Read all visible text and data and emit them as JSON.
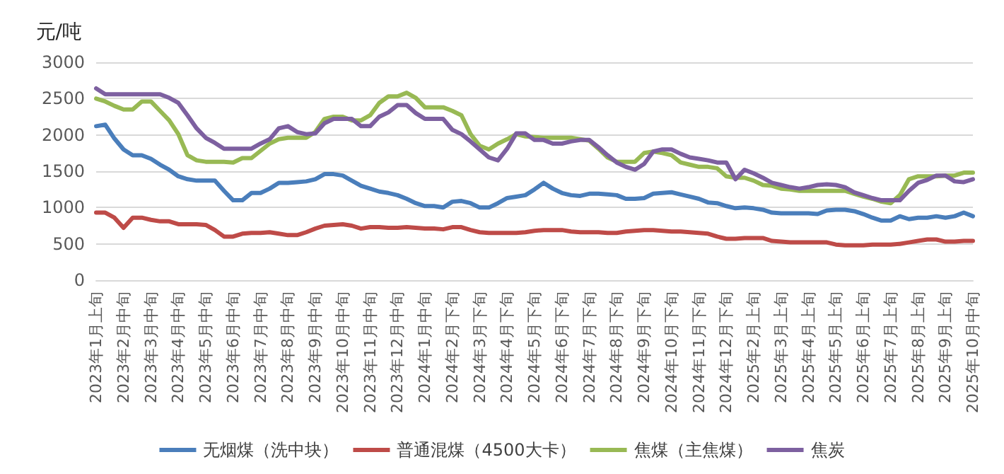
{
  "chart_data": {
    "type": "line",
    "ylabel": "元/吨",
    "ylim": [
      0,
      3000
    ],
    "yticks": [
      0,
      500,
      1000,
      1500,
      2000,
      2500,
      3000
    ],
    "grid": "y",
    "legend": "bottom",
    "marker": "none",
    "line_style": "solid",
    "categories": [
      "2023年1月上旬",
      null,
      null,
      "2023年2月中旬",
      null,
      null,
      "2023年3月中旬",
      null,
      null,
      "2023年4月中旬",
      null,
      null,
      "2023年5月中旬",
      null,
      null,
      "2023年6月中旬",
      null,
      null,
      "2023年7月中旬",
      null,
      null,
      "2023年8月中旬",
      null,
      null,
      "2023年9月中旬",
      null,
      null,
      "2023年10月中旬",
      null,
      null,
      "2023年11月中旬",
      null,
      null,
      "2023年12月中旬",
      null,
      null,
      "2024年1月中旬",
      null,
      null,
      "2024年2月下旬",
      null,
      null,
      "2024年3月下旬",
      null,
      null,
      "2024年4月下旬",
      null,
      null,
      "2024年5月下旬",
      null,
      null,
      "2024年6月下旬",
      null,
      null,
      "2024年7月下旬",
      null,
      null,
      "2024年8月下旬",
      null,
      null,
      "2024年9月下旬",
      null,
      null,
      "2024年10月下旬",
      null,
      null,
      "2024年11月下旬",
      null,
      null,
      "2024年12月下旬",
      null,
      null,
      "2025年2月上旬",
      null,
      null,
      "2025年3月上旬",
      null,
      null,
      "2025年4月上旬",
      null,
      null,
      "2025年5月上旬",
      null,
      null,
      "2025年6月上旬",
      null,
      null,
      "2025年7月上旬",
      null,
      null,
      "2025年8月上旬",
      null,
      null,
      "2025年9月上旬",
      null,
      null,
      "2025年10月中旬"
    ],
    "series": [
      {
        "name": "无烟煤（洗中块）",
        "color": "#4a7ebb",
        "values": [
          2120,
          2140,
          1950,
          1800,
          1720,
          1720,
          1670,
          1590,
          1520,
          1430,
          1390,
          1370,
          1370,
          1370,
          1230,
          1100,
          1100,
          1200,
          1200,
          1260,
          1340,
          1340,
          1350,
          1360,
          1390,
          1460,
          1460,
          1440,
          1370,
          1300,
          1260,
          1220,
          1200,
          1170,
          1120,
          1060,
          1020,
          1020,
          1000,
          1080,
          1090,
          1060,
          1000,
          1000,
          1060,
          1130,
          1150,
          1170,
          1250,
          1340,
          1260,
          1200,
          1170,
          1160,
          1190,
          1190,
          1180,
          1170,
          1120,
          1120,
          1130,
          1190,
          1200,
          1210,
          1180,
          1150,
          1120,
          1070,
          1060,
          1020,
          990,
          1000,
          990,
          970,
          930,
          920,
          920,
          920,
          920,
          910,
          960,
          970,
          970,
          950,
          910,
          860,
          820,
          820,
          880,
          840,
          860,
          860,
          880,
          860,
          880,
          930,
          880
        ]
      },
      {
        "name": "普通混煤（4500大卡）",
        "color": "#be4b48",
        "values": [
          930,
          930,
          860,
          720,
          860,
          860,
          830,
          810,
          810,
          770,
          770,
          770,
          760,
          690,
          600,
          600,
          640,
          650,
          650,
          660,
          640,
          620,
          620,
          660,
          710,
          750,
          760,
          770,
          750,
          710,
          730,
          730,
          720,
          720,
          730,
          720,
          710,
          710,
          700,
          730,
          730,
          690,
          660,
          650,
          650,
          650,
          650,
          660,
          680,
          690,
          690,
          690,
          670,
          660,
          660,
          660,
          650,
          650,
          670,
          680,
          690,
          690,
          680,
          670,
          670,
          660,
          650,
          640,
          600,
          570,
          570,
          580,
          580,
          580,
          540,
          530,
          520,
          520,
          520,
          520,
          520,
          490,
          480,
          480,
          480,
          490,
          490,
          490,
          500,
          520,
          540,
          560,
          560,
          530,
          530,
          540,
          540
        ]
      },
      {
        "name": "焦煤（主焦煤）",
        "color": "#98b954",
        "values": [
          2500,
          2460,
          2400,
          2350,
          2350,
          2460,
          2460,
          2330,
          2200,
          2010,
          1720,
          1650,
          1630,
          1630,
          1630,
          1620,
          1680,
          1680,
          1780,
          1880,
          1940,
          1960,
          1960,
          1960,
          2040,
          2220,
          2250,
          2250,
          2200,
          2200,
          2270,
          2440,
          2530,
          2530,
          2580,
          2510,
          2380,
          2380,
          2380,
          2330,
          2270,
          2010,
          1850,
          1800,
          1880,
          1940,
          2010,
          1980,
          1970,
          1960,
          1960,
          1960,
          1960,
          1940,
          1920,
          1810,
          1690,
          1630,
          1630,
          1630,
          1750,
          1770,
          1750,
          1720,
          1620,
          1590,
          1560,
          1560,
          1540,
          1430,
          1410,
          1410,
          1370,
          1310,
          1300,
          1260,
          1250,
          1230,
          1230,
          1230,
          1230,
          1230,
          1230,
          1190,
          1150,
          1120,
          1080,
          1060,
          1170,
          1390,
          1430,
          1430,
          1430,
          1440,
          1440,
          1480,
          1480
        ]
      },
      {
        "name": "焦炭",
        "color": "#7d60a0",
        "values": [
          2640,
          2560,
          2560,
          2560,
          2560,
          2560,
          2560,
          2560,
          2510,
          2440,
          2270,
          2090,
          1960,
          1890,
          1810,
          1810,
          1810,
          1810,
          1880,
          1940,
          2090,
          2120,
          2040,
          2010,
          2020,
          2160,
          2220,
          2220,
          2220,
          2120,
          2120,
          2250,
          2310,
          2410,
          2410,
          2300,
          2220,
          2220,
          2220,
          2070,
          2010,
          1910,
          1800,
          1690,
          1650,
          1810,
          2020,
          2020,
          1930,
          1930,
          1880,
          1880,
          1910,
          1930,
          1930,
          1830,
          1720,
          1620,
          1560,
          1520,
          1600,
          1770,
          1800,
          1800,
          1740,
          1690,
          1670,
          1650,
          1620,
          1620,
          1390,
          1520,
          1470,
          1410,
          1340,
          1310,
          1280,
          1260,
          1280,
          1310,
          1320,
          1310,
          1280,
          1210,
          1170,
          1130,
          1100,
          1100,
          1100,
          1230,
          1340,
          1380,
          1440,
          1440,
          1360,
          1350,
          1390
        ]
      }
    ]
  }
}
